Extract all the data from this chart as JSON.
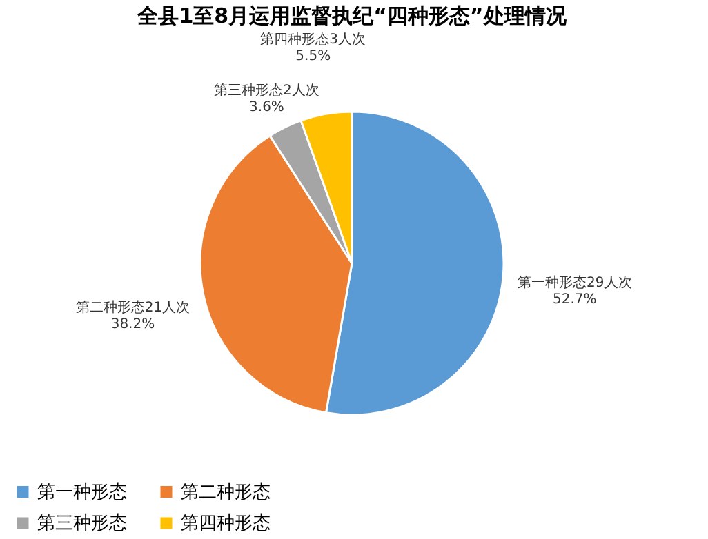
{
  "chart_data": {
    "type": "pie",
    "title": "全县1至8月运用监督执纪“四种形态”处理情况",
    "categories": [
      "第一种形态",
      "第二种形态",
      "第三种形态",
      "第四种形态"
    ],
    "values": [
      29,
      21,
      2,
      3
    ],
    "colors": [
      "#5b9bd5",
      "#ed7d31",
      "#a5a5a5",
      "#ffc000"
    ],
    "value_labels": [
      "第一种形态29人次\n52.7%",
      "第二种形态21人次\n38.2%",
      "第三种形态2人次\n3.6%",
      "第四种形态3人次\n5.5%"
    ],
    "legend": "bottom"
  }
}
